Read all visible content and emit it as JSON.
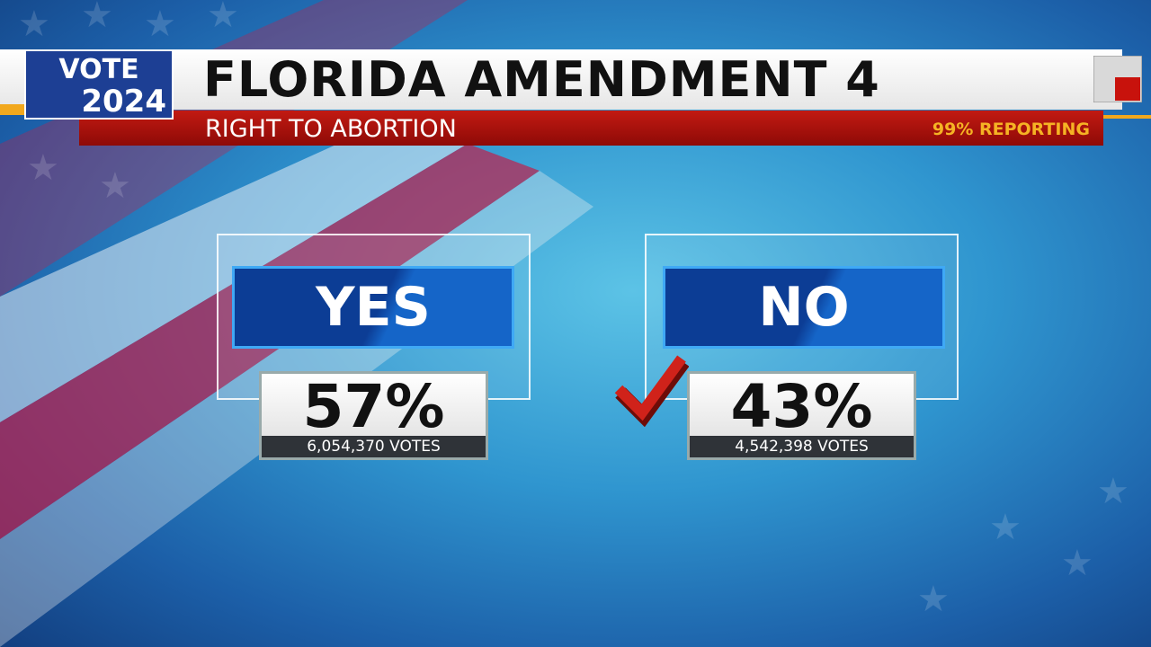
{
  "logo": {
    "line1": "VOTE",
    "line2": "2024"
  },
  "header": {
    "title": "FLORIDA AMENDMENT 4",
    "subtitle": "RIGHT TO ABORTION",
    "reporting": "99% REPORTING"
  },
  "choices": [
    {
      "label": "YES",
      "percent": "57%",
      "votes": "6,054,370 VOTES"
    },
    {
      "label": "NO",
      "percent": "43%",
      "votes": "4,542,398 VOTES"
    }
  ]
}
